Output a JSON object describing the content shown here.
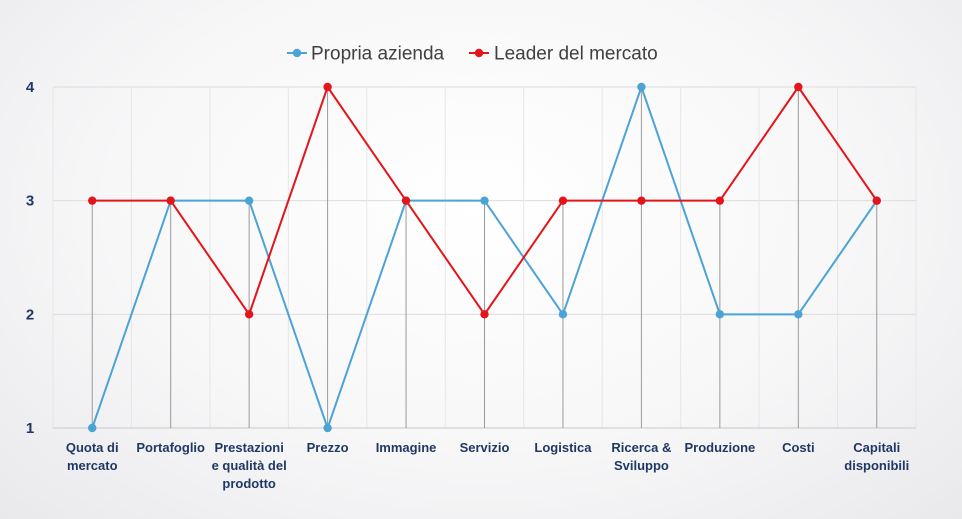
{
  "chart_data": {
    "type": "line",
    "categories": [
      "Quota di mercato",
      "Portafoglio",
      "Prestazioni e qualità del prodotto",
      "Prezzo",
      "Immagine",
      "Servizio",
      "Logistica",
      "Ricerca & Sviluppo",
      "Produzione",
      "Costi",
      "Capitali disponibili"
    ],
    "category_lines": [
      [
        "Quota di",
        "mercato"
      ],
      [
        "Portafoglio"
      ],
      [
        "Prestazioni",
        "e qualità del",
        "prodotto"
      ],
      [
        "Prezzo"
      ],
      [
        "Immagine"
      ],
      [
        "Servizio"
      ],
      [
        "Logistica"
      ],
      [
        "Ricerca &",
        "Sviluppo"
      ],
      [
        "Produzione"
      ],
      [
        "Costi"
      ],
      [
        "Capitali",
        "disponibili"
      ]
    ],
    "series": [
      {
        "name": "Propria azienda",
        "color": "#4ba3d6",
        "values": [
          1,
          3,
          3,
          1,
          3,
          3,
          2,
          4,
          2,
          2,
          3
        ]
      },
      {
        "name": "Leader del mercato",
        "color": "#e4141b",
        "values": [
          3,
          3,
          2,
          4,
          3,
          2,
          3,
          3,
          3,
          4,
          3
        ]
      }
    ],
    "yticks": [
      1,
      2,
      3,
      4
    ],
    "ylim": [
      1,
      4
    ],
    "title": "",
    "xlabel": "",
    "ylabel": "",
    "legend_position": "top",
    "grid": true,
    "drop_lines": true
  }
}
